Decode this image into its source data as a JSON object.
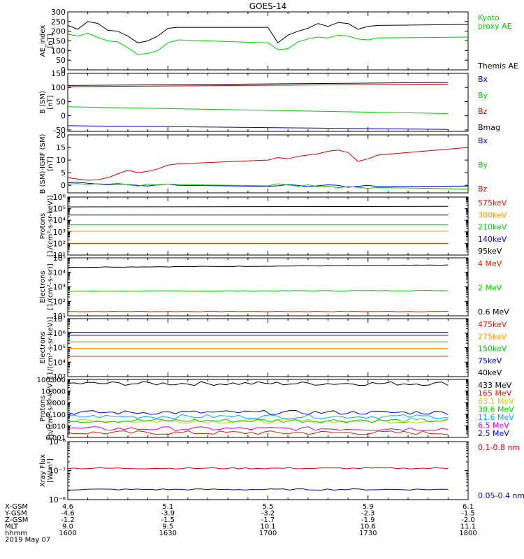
{
  "title": "GOES-14",
  "colors": {
    "black": "#000000",
    "green": "#00cc00",
    "red": "#cc0000",
    "blue": "#0000cc",
    "orange": "#ff9900",
    "yellow": "#cccc00",
    "cyan": "#00aaff",
    "magenta": "#cc00cc",
    "brick": "#cc2200"
  },
  "chart_data": [
    {
      "type": "line",
      "id": "ae",
      "ylabel": "AE_index\n[nT]",
      "ylim": [
        0,
        300
      ],
      "yticks": [
        "0",
        "50",
        "100",
        "150",
        "200",
        "250",
        "300"
      ],
      "x": [
        1600,
        1605,
        1610,
        1615,
        1620,
        1625,
        1630,
        1635,
        1640,
        1645,
        1650,
        1655,
        1700,
        1705,
        1710,
        1715,
        1720,
        1725,
        1730,
        1735,
        1740,
        1745,
        1750,
        1755,
        1800
      ],
      "series": [
        {
          "name": "Kyoto\nproxy AE",
          "color": "green",
          "values": [
            185,
            175,
            190,
            168,
            150,
            145,
            115,
            80,
            85,
            100,
            140,
            155,
            140,
            105,
            110,
            145,
            160,
            170,
            165,
            180,
            175,
            160,
            155,
            165,
            170
          ]
        },
        {
          "name": "Themis AE",
          "color": "black",
          "values": [
            230,
            210,
            250,
            240,
            205,
            200,
            175,
            140,
            150,
            175,
            215,
            220,
            220,
            140,
            180,
            200,
            215,
            240,
            225,
            245,
            240,
            210,
            225,
            230,
            235
          ]
        }
      ]
    },
    {
      "type": "line",
      "id": "bsm",
      "ylabel": "B (SM)\n[nT]",
      "ylim": [
        -55,
        150
      ],
      "yticks": [
        "-50",
        "0",
        "50",
        "100",
        "150"
      ],
      "x": [
        1600,
        1800
      ],
      "series": [
        {
          "name": "Bx",
          "color": "blue",
          "values": [
            -35,
            -48
          ]
        },
        {
          "name": "By",
          "color": "green",
          "values": [
            32,
            8
          ]
        },
        {
          "name": "Bz",
          "color": "red",
          "values": [
            103,
            112
          ]
        },
        {
          "name": "Bmag",
          "color": "black",
          "values": [
            107,
            118
          ]
        }
      ]
    },
    {
      "type": "line",
      "id": "bigrf",
      "ylabel": "B (SM)-IGRF (SM)\n[nT]",
      "ylim": [
        -3,
        20
      ],
      "yticks": [
        "0",
        "5",
        "10",
        "15",
        "20"
      ],
      "x": [
        1600,
        1605,
        1610,
        1615,
        1620,
        1625,
        1630,
        1635,
        1640,
        1645,
        1650,
        1655,
        1700,
        1705,
        1710,
        1715,
        1720,
        1725,
        1730,
        1735,
        1740,
        1745,
        1750,
        1755,
        1800
      ],
      "series": [
        {
          "name": "Bx",
          "color": "blue",
          "values": [
            1,
            1.2,
            0.8,
            0.5,
            0.2,
            0.5,
            0.3,
            0,
            -0.3,
            0.2,
            0.5,
            0,
            -0.4,
            -0.2,
            0.3,
            0,
            -0.6,
            -0.2,
            0.2,
            0,
            -0.8,
            -0.4,
            0,
            -0.5,
            -0.3
          ]
        },
        {
          "name": "By",
          "color": "green",
          "values": [
            0.5,
            0.7,
            0.3,
            0.6,
            0.4,
            0.8,
            0.2,
            -0.3,
            0.4,
            0.1,
            0.5,
            0.3,
            -0.2,
            0.6,
            0.1,
            -0.4,
            0.2,
            -0.6,
            -0.3,
            -1,
            -0.5,
            -0.8,
            -1.2,
            -0.9,
            -1.5
          ]
        },
        {
          "name": "Bz",
          "color": "red",
          "values": [
            3,
            2.5,
            2,
            2.2,
            3,
            4.5,
            6,
            5,
            5.5,
            6.5,
            8,
            8.5,
            10,
            11,
            10.5,
            11.5,
            12,
            12.5,
            13.5,
            14,
            13,
            9.5,
            10.5,
            12,
            15
          ]
        }
      ]
    },
    {
      "type": "line",
      "id": "protons_keV",
      "ylabel": "Protons\n[1/(cm²-s-sr-keV)]",
      "scale": "log",
      "ylim": [
        1,
        6
      ],
      "yticks": [
        "10¹",
        "10²",
        "10³",
        "10⁴",
        "10⁵",
        "10⁶"
      ],
      "x": [
        1600,
        1800
      ],
      "series": [
        {
          "name": "575keV",
          "color": "brick",
          "values": [
            2.0,
            2.0
          ]
        },
        {
          "name": "300keV",
          "color": "orange",
          "values": [
            3.05,
            3.05
          ]
        },
        {
          "name": "210keV",
          "color": "green",
          "values": [
            3.6,
            3.6
          ]
        },
        {
          "name": "140keV",
          "color": "blue",
          "values": [
            4.45,
            4.45
          ]
        },
        {
          "name": "95keV",
          "color": "black",
          "values": [
            5.15,
            5.2
          ]
        }
      ]
    },
    {
      "type": "line",
      "id": "electrons_MeV",
      "ylabel": "Electrons\n[1/(cm²-s-sr)]",
      "scale": "log",
      "ylim": [
        1,
        5
      ],
      "yticks": [
        "10¹",
        "10²",
        "10³",
        "10⁴",
        "10⁵"
      ],
      "x": [
        1600,
        1800
      ],
      "series": [
        {
          "name": "4 MeV",
          "color": "brick",
          "values": [
            1.3,
            1.3
          ]
        },
        {
          "name": "2 MeV",
          "color": "green",
          "values": [
            2.7,
            2.75
          ]
        },
        {
          "name": "0.6 MeV",
          "color": "black",
          "values": [
            4.35,
            4.5
          ]
        }
      ]
    },
    {
      "type": "line",
      "id": "electrons_keV",
      "ylabel": "Electrons\n[1/(cm²-s-sr-keV)]",
      "scale": "log",
      "ylim": [
        3,
        7
      ],
      "yticks": [
        "10³",
        "10⁴",
        "10⁵",
        "10⁶",
        "10⁷"
      ],
      "x": [
        1600,
        1800
      ],
      "series": [
        {
          "name": "475keV",
          "color": "brick",
          "values": [
            4.4,
            4.4
          ]
        },
        {
          "name": "275keV",
          "color": "orange",
          "values": [
            4.95,
            4.95
          ]
        },
        {
          "name": "150keV",
          "color": "green",
          "values": [
            5.4,
            5.4
          ]
        },
        {
          "name": "75keV",
          "color": "blue",
          "values": [
            5.85,
            5.85
          ]
        },
        {
          "name": "40keV",
          "color": "black",
          "values": [
            6.05,
            6.05
          ]
        }
      ]
    },
    {
      "type": "line",
      "id": "protons_MeV",
      "ylabel": "Protons\n[p/(cm²-s-sr-keV)]",
      "scale": "log",
      "ylim": [
        -3,
        2
      ],
      "yticks": [
        "0.001",
        "0.010",
        "0.100",
        "1.000",
        "10.000",
        "100.000"
      ],
      "x": [
        1600,
        1800
      ],
      "series": [
        {
          "name": "433 MeV",
          "color": "black",
          "values": [
            1.65,
            1.65
          ]
        },
        {
          "name": "165 MeV",
          "color": "brick",
          "values": [
            -2.6,
            -2.6
          ]
        },
        {
          "name": "63.1 MeV",
          "color": "yellow",
          "values": [
            -1.6,
            -1.6
          ]
        },
        {
          "name": "30.6 MeV",
          "color": "green",
          "values": [
            -1.55,
            -1.55
          ]
        },
        {
          "name": "11.6 MeV",
          "color": "cyan",
          "values": [
            -1.2,
            -1.2
          ]
        },
        {
          "name": "6.5 MeV",
          "color": "magenta",
          "values": [
            -2.25,
            -2.25
          ]
        },
        {
          "name": "2.5 MeV",
          "color": "blue",
          "values": [
            -0.85,
            -0.85
          ]
        }
      ]
    },
    {
      "type": "line",
      "id": "xray",
      "ylabel": "Xray Flux\n[W/m²]",
      "scale": "log",
      "ylim": [
        -8,
        -6
      ],
      "yticks": [
        "10⁻⁸",
        "10⁻⁷",
        "10⁻⁶"
      ],
      "x": [
        1600,
        1800
      ],
      "series": [
        {
          "name": "0.1-0.8 nm",
          "color": "red",
          "values": [
            -6.92,
            -6.92
          ]
        },
        {
          "name": "0.05-0.4 nm",
          "color": "blue",
          "values": [
            -7.65,
            -7.65
          ]
        }
      ]
    }
  ],
  "x_axis": {
    "row_labels": [
      "X-GSM",
      "Y-GSM",
      "Z-GSM",
      "MLT",
      "hhmm",
      "2019 May 07"
    ],
    "columns": [
      {
        "hhmm": "1600",
        "values": [
          "4.6",
          "-4.6",
          "-1.2",
          "9.0",
          "1600"
        ]
      },
      {
        "hhmm": "1630",
        "values": [
          "5.1",
          "-3.9",
          "-1.5",
          "9.5",
          "1630"
        ]
      },
      {
        "hhmm": "1700",
        "values": [
          "5.5",
          "-3.2",
          "-1.7",
          "10.1",
          "1700"
        ]
      },
      {
        "hhmm": "1730",
        "values": [
          "5.9",
          "-2.3",
          "-1.9",
          "10.6",
          "1730"
        ]
      },
      {
        "hhmm": "1800",
        "values": [
          "6.1",
          "-1.5",
          "-2.0",
          "11.1",
          "1800"
        ]
      }
    ]
  }
}
